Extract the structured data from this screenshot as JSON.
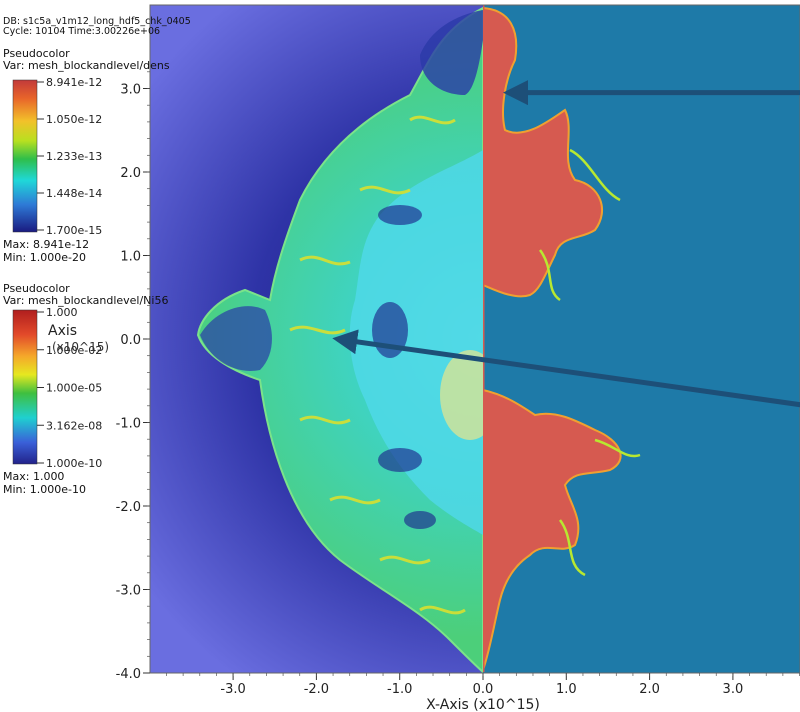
{
  "header": {
    "db_line": "DB: s1c5a_v1m12_long_hdf5_chk_0405",
    "cycle_line": "Cycle: 10104   Time:3.00226e+06"
  },
  "legend_dens": {
    "title": "Pseudocolor",
    "var": "Var: mesh_blockandlevel/dens",
    "ticks": [
      "8.941e-12",
      "1.050e-12",
      "1.233e-13",
      "1.448e-14",
      "1.700e-15"
    ],
    "max": "Max: 8.941e-12",
    "min": "Min: 1.000e-20"
  },
  "legend_ni56": {
    "title": "Pseudocolor",
    "var": "Var: mesh_blockandlevel/Ni56",
    "ticks": [
      "1.000",
      "1.000e-02",
      "1.000e-05",
      "3.162e-08",
      "1.000e-10"
    ],
    "max": "Max: 1.000",
    "min": "Min: 1.000e-10",
    "overlap_text": "Axis",
    "overlap_text2": "(x10^15)"
  },
  "chart_data": {
    "type": "heatmap",
    "panels": [
      {
        "side": "left",
        "variable": "mesh_blockandlevel/dens",
        "scale": "log"
      },
      {
        "side": "right",
        "variable": "mesh_blockandlevel/Ni56",
        "scale": "log"
      }
    ],
    "xlabel": "X-Axis (x10^15)",
    "ylabel": "",
    "xlim": [
      -4.0,
      3.85
    ],
    "ylim": [
      -4.0,
      3.35
    ],
    "x_ticks": [
      -3.0,
      -2.0,
      -1.0,
      0.0,
      1.0,
      2.0,
      3.0
    ],
    "x_tick_labels": [
      "-3.0",
      "-2.0",
      "-1.0",
      "0.0",
      "1.0",
      "2.0",
      "3.0"
    ],
    "y_ticks": [
      3.0,
      2.0,
      1.0,
      0.0,
      -1.0,
      -2.0,
      -3.0,
      -4.0
    ],
    "y_tick_labels": [
      "3.0",
      "2.0",
      "1.0",
      "0.0",
      "-1.0",
      "-2.0",
      "-3.0",
      "-4.0"
    ],
    "annotations": [
      {
        "type": "arrow",
        "from": [
          3.9,
          2.95
        ],
        "to": [
          0.3,
          2.95
        ]
      },
      {
        "type": "arrow",
        "from": [
          3.9,
          -0.8
        ],
        "to": [
          -1.75,
          0.0
        ]
      }
    ],
    "colors": {
      "background_dens": "#5b5fd6",
      "background_ni56": "#1e7aa8",
      "shell": "#38d0a8",
      "ni_red": "#d65a50",
      "arrow": "#1d4f78"
    }
  }
}
